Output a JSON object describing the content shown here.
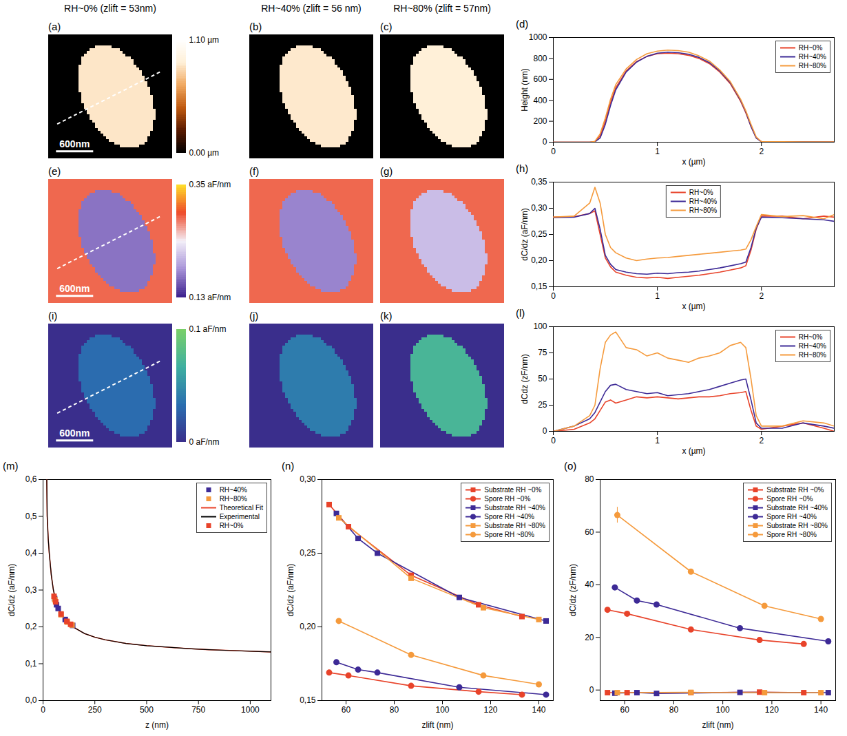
{
  "chart_data": [
    {
      "type": "heatmap",
      "panel": "(a)",
      "title": "RH~0% (zlift = 53nm)",
      "image_size_nm": 2000,
      "substrate_value": 0,
      "spore_value": 0.85,
      "colorbar": {
        "range": [
          0,
          1.1
        ],
        "ticks": [
          {
            "value": 1.1,
            "label": "1.10 µm"
          },
          {
            "value": 0,
            "label": "0.00 µm"
          }
        ]
      },
      "scale_bar": {
        "length_nm": 600,
        "label": "600nm"
      }
    },
    {
      "type": "heatmap",
      "panel": "(b)",
      "title": "RH~40% (zlift = 56 nm)",
      "image_size_nm": 2000,
      "substrate_value": 0,
      "spore_value": 0.86
    },
    {
      "type": "heatmap",
      "panel": "(c)",
      "title": "RH~80% (zlift = 57nm)",
      "image_size_nm": 2000,
      "substrate_value": 0,
      "spore_value": 0.88
    },
    {
      "type": "line",
      "panel": "(d)",
      "x_label": "x (µm)",
      "y_label": "Height (nm)",
      "xlim": [
        0,
        2.7
      ],
      "xticks": [
        0,
        1,
        2
      ],
      "ylim": [
        0,
        1000
      ],
      "yticks": [
        0,
        200,
        400,
        600,
        800,
        1000
      ],
      "legend": "top-right",
      "x": [
        0,
        0.2,
        0.35,
        0.4,
        0.45,
        0.5,
        0.55,
        0.6,
        0.7,
        0.8,
        0.9,
        1.0,
        1.1,
        1.2,
        1.3,
        1.4,
        1.5,
        1.6,
        1.7,
        1.8,
        1.85,
        1.9,
        1.95,
        2.0,
        2.2,
        2.4,
        2.6,
        2.7
      ],
      "series": [
        {
          "name": "RH~0%",
          "color": "#e8432a",
          "values": [
            0,
            0,
            0,
            5,
            60,
            200,
            380,
            520,
            680,
            770,
            820,
            845,
            850,
            845,
            830,
            800,
            750,
            670,
            560,
            390,
            280,
            150,
            40,
            5,
            5,
            3,
            3,
            3
          ]
        },
        {
          "name": "RH~40%",
          "color": "#3d2a96",
          "values": [
            0,
            0,
            0,
            3,
            40,
            170,
            350,
            500,
            670,
            765,
            820,
            850,
            860,
            855,
            840,
            810,
            760,
            680,
            570,
            400,
            290,
            150,
            40,
            3,
            3,
            3,
            3,
            3
          ]
        },
        {
          "name": "RH~80%",
          "color": "#f59a3c",
          "values": [
            0,
            0,
            0,
            8,
            80,
            230,
            410,
            550,
            700,
            790,
            845,
            870,
            880,
            875,
            860,
            825,
            775,
            690,
            580,
            410,
            300,
            170,
            50,
            5,
            5,
            3,
            3,
            3
          ]
        }
      ]
    },
    {
      "type": "heatmap",
      "panel": "(e)",
      "image_size_nm": 2000,
      "substrate_value": 0.285,
      "spore_value": 0.17,
      "colorbar": {
        "range": [
          0.13,
          0.35
        ],
        "ticks": [
          {
            "value": 0.35,
            "label": "0.35 aF/nm"
          },
          {
            "value": 0.13,
            "label": "0.13 aF/nm"
          }
        ]
      },
      "scale_bar": {
        "length_nm": 600,
        "label": "600nm"
      }
    },
    {
      "type": "heatmap",
      "panel": "(f)",
      "image_size_nm": 2000,
      "substrate_value": 0.285,
      "spore_value": 0.178
    },
    {
      "type": "heatmap",
      "panel": "(g)",
      "image_size_nm": 2000,
      "substrate_value": 0.285,
      "spore_value": 0.21
    },
    {
      "type": "line",
      "panel": "(h)",
      "x_label": "x (µm)",
      "y_label": "dC/dz (aF/nm)",
      "xlim": [
        0,
        2.7
      ],
      "xticks": [
        0,
        1,
        2
      ],
      "ylim": [
        0.15,
        0.35
      ],
      "yticks": [
        {
          "value": 0.15,
          "label": "0,15"
        },
        {
          "value": 0.2,
          "label": "0,20"
        },
        {
          "value": 0.25,
          "label": "0,25"
        },
        {
          "value": 0.3,
          "label": "0,30"
        },
        {
          "value": 0.35,
          "label": "0,35"
        }
      ],
      "legend": "top",
      "x": [
        0,
        0.2,
        0.35,
        0.4,
        0.45,
        0.5,
        0.55,
        0.6,
        0.7,
        0.8,
        0.9,
        1.0,
        1.1,
        1.2,
        1.3,
        1.4,
        1.5,
        1.6,
        1.7,
        1.8,
        1.85,
        1.9,
        1.95,
        2.0,
        2.2,
        2.4,
        2.6,
        2.7
      ],
      "series": [
        {
          "name": "RH~0%",
          "color": "#e8432a",
          "values": [
            0.283,
            0.284,
            0.29,
            0.295,
            0.25,
            0.205,
            0.188,
            0.178,
            0.172,
            0.168,
            0.167,
            0.168,
            0.166,
            0.168,
            0.17,
            0.172,
            0.175,
            0.178,
            0.182,
            0.186,
            0.19,
            0.22,
            0.26,
            0.285,
            0.285,
            0.28,
            0.285,
            0.283
          ]
        },
        {
          "name": "RH~40%",
          "color": "#3d2a96",
          "values": [
            0.282,
            0.283,
            0.29,
            0.3,
            0.26,
            0.21,
            0.193,
            0.183,
            0.178,
            0.175,
            0.174,
            0.176,
            0.175,
            0.177,
            0.178,
            0.18,
            0.183,
            0.186,
            0.19,
            0.194,
            0.197,
            0.225,
            0.262,
            0.283,
            0.282,
            0.28,
            0.278,
            0.275
          ]
        },
        {
          "name": "RH~80%",
          "color": "#f59a3c",
          "values": [
            0.283,
            0.285,
            0.31,
            0.34,
            0.31,
            0.25,
            0.225,
            0.215,
            0.205,
            0.2,
            0.203,
            0.205,
            0.206,
            0.208,
            0.21,
            0.212,
            0.214,
            0.216,
            0.218,
            0.22,
            0.222,
            0.24,
            0.265,
            0.288,
            0.284,
            0.286,
            0.28,
            0.288
          ]
        }
      ]
    },
    {
      "type": "heatmap",
      "panel": "(i)",
      "image_size_nm": 2000,
      "substrate_value": 0,
      "spore_value": 0.032,
      "colorbar": {
        "range": [
          0,
          0.1
        ],
        "ticks": [
          {
            "value": 0.1,
            "label": "0.1 aF/nm"
          },
          {
            "value": 0,
            "label": "0 aF/nm"
          }
        ]
      },
      "scale_bar": {
        "length_nm": 600,
        "label": "600nm"
      }
    },
    {
      "type": "heatmap",
      "panel": "(j)",
      "image_size_nm": 2000,
      "substrate_value": 0,
      "spore_value": 0.04
    },
    {
      "type": "heatmap",
      "panel": "(k)",
      "image_size_nm": 2000,
      "substrate_value": 0,
      "spore_value": 0.072
    },
    {
      "type": "line",
      "panel": "(l)",
      "x_label": "x (µm)",
      "y_label": "dCdz (zF/nm)",
      "xlim": [
        0,
        2.7
      ],
      "xticks": [
        0,
        1,
        2
      ],
      "ylim": [
        0,
        100
      ],
      "yticks": [
        0,
        25,
        50,
        75,
        100
      ],
      "legend": "top-right",
      "x": [
        0,
        0.2,
        0.35,
        0.4,
        0.45,
        0.5,
        0.55,
        0.6,
        0.7,
        0.8,
        0.9,
        1.0,
        1.1,
        1.2,
        1.3,
        1.4,
        1.5,
        1.6,
        1.7,
        1.8,
        1.85,
        1.9,
        1.95,
        2.0,
        2.2,
        2.4,
        2.6,
        2.7
      ],
      "series": [
        {
          "name": "RH~0%",
          "color": "#e8432a",
          "values": [
            0,
            2,
            8,
            12,
            20,
            28,
            30,
            27,
            30,
            33,
            32,
            33,
            32,
            31,
            32,
            33,
            33,
            34,
            36,
            37,
            38,
            20,
            5,
            2,
            5,
            8,
            3,
            0
          ]
        },
        {
          "name": "RH~40%",
          "color": "#3d2a96",
          "values": [
            0,
            5,
            12,
            18,
            28,
            38,
            44,
            45,
            40,
            38,
            36,
            37,
            34,
            35,
            36,
            38,
            40,
            43,
            46,
            49,
            50,
            30,
            8,
            3,
            3,
            8,
            5,
            3
          ]
        },
        {
          "name": "RH~80%",
          "color": "#f59a3c",
          "values": [
            0,
            5,
            15,
            25,
            60,
            85,
            92,
            95,
            80,
            78,
            72,
            75,
            70,
            68,
            66,
            70,
            72,
            75,
            82,
            85,
            80,
            50,
            15,
            5,
            5,
            10,
            8,
            5
          ]
        }
      ]
    },
    {
      "type": "line",
      "panel": "(m)",
      "x_label": "z (nm)",
      "y_label": "dC/dz (aF/nm)",
      "xlim": [
        0,
        1100
      ],
      "xticks": [
        0,
        250,
        500,
        750,
        1000
      ],
      "ylim": [
        0,
        0.6
      ],
      "yticks": [
        {
          "value": 0,
          "label": "0,0"
        },
        {
          "value": 0.1,
          "label": "0,1"
        },
        {
          "value": 0.2,
          "label": "0,2"
        },
        {
          "value": 0.3,
          "label": "0,3"
        },
        {
          "value": 0.4,
          "label": "0,4"
        },
        {
          "value": 0.5,
          "label": "0,5"
        },
        {
          "value": 0.6,
          "label": "0,6"
        }
      ],
      "legend": "top-right",
      "series": [
        {
          "name": "RH~40%",
          "type": "scatter",
          "marker": "square",
          "color": "#3d2a96",
          "x": [
            56,
            65,
            73,
            107,
            143
          ],
          "values": [
            0.277,
            0.26,
            0.25,
            0.22,
            0.204
          ]
        },
        {
          "name": "RH~80%",
          "type": "scatter",
          "marker": "square",
          "color": "#f59a3c",
          "x": [
            57,
            87,
            117,
            140
          ],
          "values": [
            0.274,
            0.233,
            0.213,
            0.205
          ]
        },
        {
          "name": "Theoretical Fit",
          "type": "line",
          "color": "#e8432a",
          "x": [
            18,
            20,
            25,
            30,
            40,
            50,
            60,
            80,
            100,
            125,
            150,
            200,
            250,
            300,
            400,
            500,
            600,
            700,
            800,
            900,
            1000,
            1100
          ],
          "values": [
            0.6,
            0.5,
            0.44,
            0.4,
            0.34,
            0.3,
            0.275,
            0.245,
            0.225,
            0.21,
            0.198,
            0.182,
            0.172,
            0.165,
            0.155,
            0.149,
            0.145,
            0.141,
            0.138,
            0.136,
            0.134,
            0.132
          ]
        },
        {
          "name": "Experimental",
          "type": "line",
          "color": "#000000",
          "x": [
            18,
            20,
            25,
            30,
            40,
            50,
            60,
            80,
            100,
            125,
            150,
            200,
            250,
            300,
            400,
            500,
            600,
            700,
            800,
            900,
            1000,
            1100
          ],
          "values": [
            0.6,
            0.5,
            0.44,
            0.4,
            0.34,
            0.3,
            0.275,
            0.245,
            0.225,
            0.21,
            0.198,
            0.182,
            0.172,
            0.165,
            0.155,
            0.149,
            0.145,
            0.141,
            0.138,
            0.136,
            0.134,
            0.132
          ]
        },
        {
          "name": "RH~0%",
          "type": "scatter",
          "marker": "square",
          "color": "#e8432a",
          "x": [
            53,
            61,
            87,
            115,
            133
          ],
          "values": [
            0.283,
            0.268,
            0.235,
            0.215,
            0.207
          ]
        }
      ]
    },
    {
      "type": "line",
      "panel": "(n)",
      "x_label": "zlift (nm)",
      "y_label": "dC/dz (aF/nm)",
      "xlim": [
        50,
        146
      ],
      "xticks": [
        60,
        80,
        100,
        120,
        140
      ],
      "ylim": [
        0.15,
        0.3
      ],
      "yticks": [
        {
          "value": 0.15,
          "label": "0,15"
        },
        {
          "value": 0.2,
          "label": "0,20"
        },
        {
          "value": 0.25,
          "label": "0,25"
        },
        {
          "value": 0.3,
          "label": "0,30"
        }
      ],
      "legend": "top-right",
      "series": [
        {
          "name": "Substrate RH ~0%",
          "marker": "square",
          "color": "#e8432a",
          "x": [
            53,
            61,
            87,
            115,
            133
          ],
          "values": [
            0.283,
            0.268,
            0.235,
            0.215,
            0.207
          ]
        },
        {
          "name": "Spore RH ~0%",
          "marker": "circle",
          "color": "#e8432a",
          "x": [
            53,
            61,
            87,
            115,
            133
          ],
          "values": [
            0.169,
            0.167,
            0.16,
            0.156,
            0.154
          ]
        },
        {
          "name": "Substrate RH ~40%",
          "marker": "square",
          "color": "#3d2a96",
          "x": [
            56,
            65,
            73,
            107,
            143
          ],
          "values": [
            0.277,
            0.26,
            0.25,
            0.22,
            0.204
          ]
        },
        {
          "name": "Spore RH ~40%",
          "marker": "circle",
          "color": "#3d2a96",
          "x": [
            56,
            65,
            73,
            107,
            143
          ],
          "values": [
            0.176,
            0.171,
            0.169,
            0.159,
            0.154
          ]
        },
        {
          "name": "Substrate RH ~80%",
          "marker": "square",
          "color": "#f59a3c",
          "x": [
            57,
            87,
            117,
            140
          ],
          "values": [
            0.274,
            0.233,
            0.213,
            0.205
          ]
        },
        {
          "name": "Spore RH ~80%",
          "marker": "circle",
          "color": "#f59a3c",
          "x": [
            57,
            87,
            117,
            140
          ],
          "values": [
            0.204,
            0.181,
            0.167,
            0.161
          ]
        }
      ]
    },
    {
      "type": "line",
      "panel": "(o)",
      "x_label": "zlift (nm)",
      "y_label": "dC/dz (zF/nm)",
      "xlim": [
        50,
        146
      ],
      "xticks": [
        60,
        80,
        100,
        120,
        140
      ],
      "ylim": [
        -4,
        80
      ],
      "yticks": [
        0,
        20,
        40,
        60,
        80
      ],
      "legend": "top-right",
      "series": [
        {
          "name": "Substrate RH ~0%",
          "marker": "square",
          "color": "#e8432a",
          "x": [
            53,
            61,
            87,
            115,
            133
          ],
          "values": [
            -1,
            -1,
            -1,
            -0.8,
            -1
          ]
        },
        {
          "name": "Spore RH ~0%",
          "marker": "circle",
          "color": "#e8432a",
          "x": [
            53,
            61,
            87,
            115,
            133
          ],
          "values": [
            30.5,
            29,
            23,
            19,
            17.5
          ]
        },
        {
          "name": "Substrate RH ~40%",
          "marker": "square",
          "color": "#3d2a96",
          "x": [
            56,
            65,
            73,
            107,
            143
          ],
          "values": [
            -1.2,
            -1,
            -1.3,
            -0.9,
            -1
          ]
        },
        {
          "name": "Spore RH ~40%",
          "marker": "circle",
          "color": "#3d2a96",
          "x": [
            56,
            65,
            73,
            107,
            143
          ],
          "values": [
            39,
            34,
            32.5,
            23.5,
            18.5
          ]
        },
        {
          "name": "Substrate RH ~80%",
          "marker": "square",
          "color": "#f59a3c",
          "x": [
            57,
            87,
            117,
            140
          ],
          "values": [
            -1,
            -0.9,
            -1,
            -1
          ]
        },
        {
          "name": "Spore RH ~80%",
          "marker": "circle",
          "color": "#f59a3c",
          "x": [
            57,
            87,
            117,
            140
          ],
          "values": [
            66.5,
            45,
            32,
            27
          ],
          "errors": [
            3,
            null,
            null,
            null
          ]
        }
      ]
    }
  ]
}
